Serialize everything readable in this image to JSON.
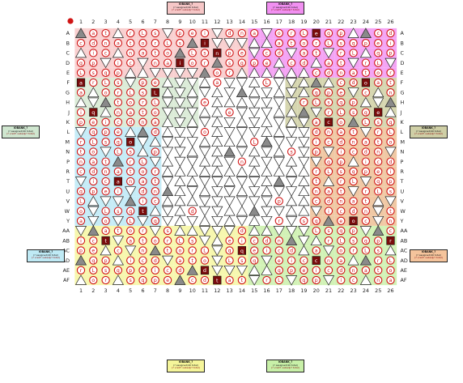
{
  "columns": [
    "1",
    "2",
    "3",
    "4",
    "5",
    "6",
    "7",
    "8",
    "9",
    "10",
    "11",
    "12",
    "13",
    "14",
    "15",
    "16",
    "17",
    "18",
    "19",
    "20",
    "21",
    "22",
    "23",
    "24",
    "25",
    "26"
  ],
  "rows": [
    "A",
    "B",
    "C",
    "D",
    "E",
    "F",
    "G",
    "H",
    "J",
    "K",
    "L",
    "M",
    "N",
    "P",
    "R",
    "T",
    "U",
    "V",
    "W",
    "Y",
    "AA",
    "AB",
    "AC",
    "AD",
    "AE",
    "AF"
  ],
  "corner_marker_color": "#d01414",
  "pad_glyphs": [
    "n",
    "p",
    "o",
    "c",
    "s",
    "a",
    "e",
    "r",
    "d",
    "q",
    "t",
    "i",
    "L"
  ],
  "banks": [
    {
      "id": "top-left",
      "title": "IOBANK_?",
      "line1": "(? assigned/40 total)",
      "line2": "(? vref/? vabadj/? total)",
      "color": "#f6c7c7"
    },
    {
      "id": "top-right",
      "title": "IOBANK_?",
      "line1": "(? assigned/40 total)",
      "line2": "(? vref/? vabadj/? total)",
      "color": "#f190f1"
    },
    {
      "id": "left-upper",
      "title": "IOBANK_?",
      "line1": "(? assigned/40 total)",
      "line2": "(? vref/? vabadj/? total)",
      "color": "#cfe6cf"
    },
    {
      "id": "right-upper",
      "title": "IOBANK_?",
      "line1": "(? assigned/40 total)",
      "line2": "(? vref/? vabadj/? total)",
      "color": "#cfcfa6"
    },
    {
      "id": "left-lower",
      "title": "IOBANK_?",
      "line1": "(? assigned/40 total)",
      "line2": "(? vref/? vabadj/? total)",
      "color": "#bfeaf5"
    },
    {
      "id": "right-lower",
      "title": "IOBANK_?",
      "line1": "(? assigned/40 total)",
      "line2": "(? vref/? vabadj/? total)",
      "color": "#f5c49c"
    },
    {
      "id": "bottom-left",
      "title": "IOBANK_?",
      "line1": "(? assigned/40 total)",
      "line2": "(? vref/? vabadj/? total)",
      "color": "#f5f59a"
    },
    {
      "id": "bottom-right",
      "title": "IOBANK_?",
      "line1": "(? assigned/40 total)",
      "line2": "(? vref/? vabadj/? total)",
      "color": "#c8f0a8"
    }
  ],
  "region_colors": {
    "top_left": "#f9d0d0",
    "top_right": "#f4a4f4",
    "left_upper": "#dcecd8",
    "right_upper": "#d6d6b0",
    "left_lower": "#c6ecf7",
    "right_lower": "#f0c8a4",
    "bottom_left": "#f7f7ae",
    "bottom_right": "#d2f2b6",
    "center": "#ffffff"
  },
  "symbol_colors": {
    "pad_ring": "#d01414",
    "pad_fill": "#ffffff",
    "dark_block": "#7a0c0c",
    "gray_triangle": "#8a8a8a",
    "white_triangle": "#ffffff"
  }
}
